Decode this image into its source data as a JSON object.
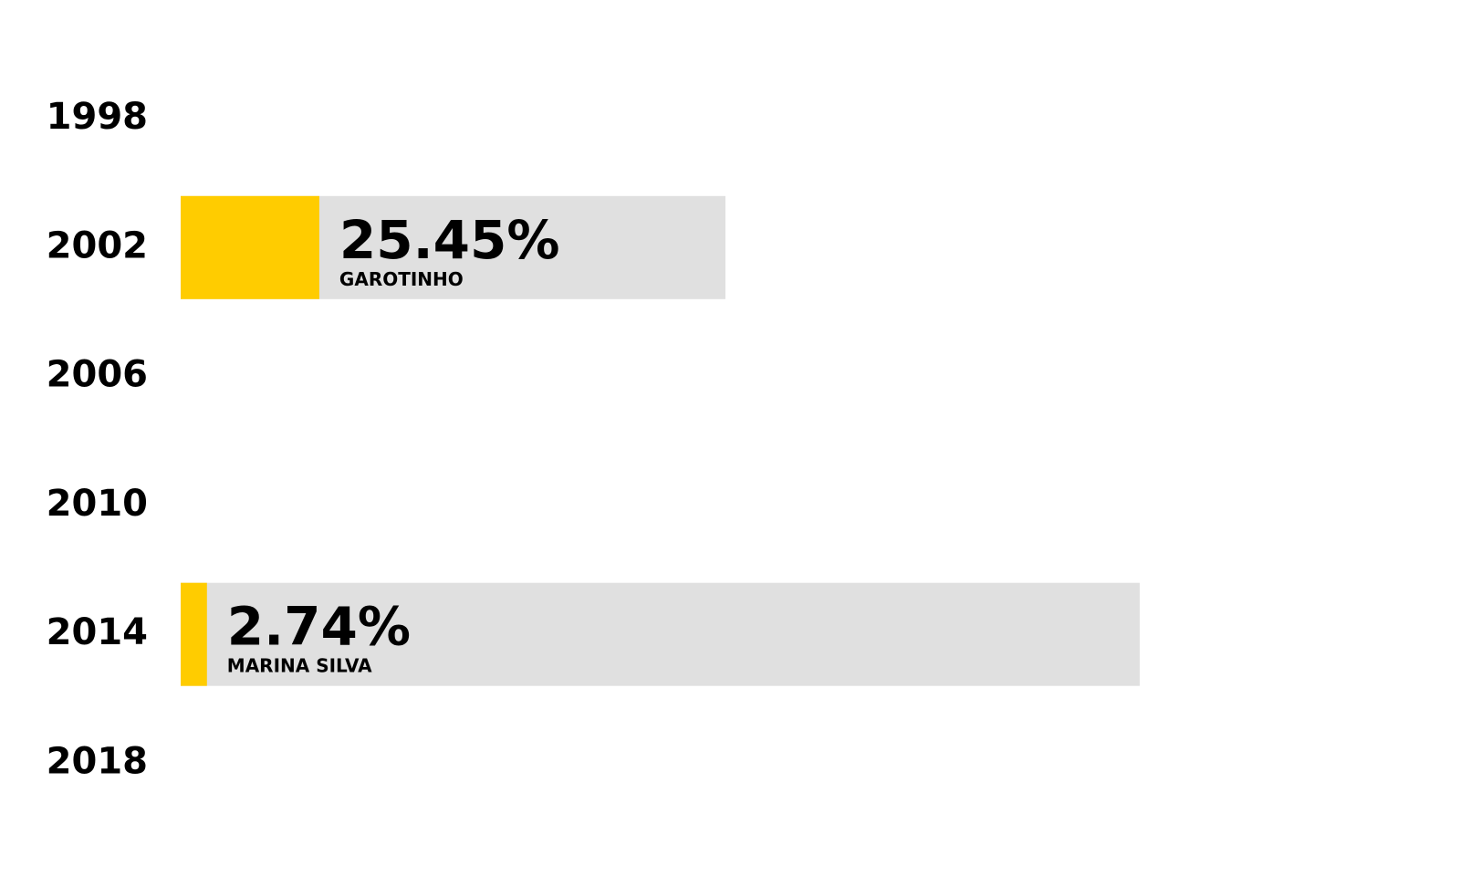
{
  "chart_data": {
    "type": "bar",
    "categories": [
      "1998",
      "2002",
      "2006",
      "2010",
      "2014",
      "2018"
    ],
    "values": [
      null,
      25.45,
      null,
      null,
      2.74,
      null
    ],
    "value_labels": [
      null,
      "25.45%",
      null,
      null,
      "2.74%",
      null
    ],
    "candidates": [
      null,
      "GAROTINHO",
      null,
      null,
      "MARINA SILVA",
      null
    ],
    "color": "#ffcc00",
    "track_color": "#e0e0e0",
    "xlim": [
      0,
      100
    ]
  }
}
